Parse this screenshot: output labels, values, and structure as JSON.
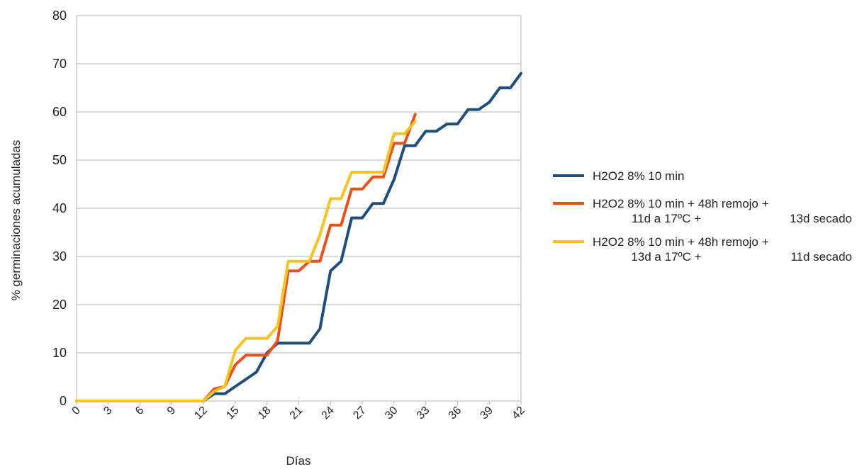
{
  "chart_data": {
    "type": "line",
    "title": "",
    "xlabel": "Días",
    "ylabel": "% germinaciones acumuladas",
    "xlim": [
      0,
      42
    ],
    "ylim": [
      0,
      80
    ],
    "yticks": [
      0,
      10,
      20,
      30,
      40,
      50,
      60,
      70,
      80
    ],
    "xticks": [
      0,
      3,
      6,
      9,
      12,
      15,
      18,
      21,
      24,
      27,
      30,
      33,
      36,
      39,
      42
    ],
    "grid": "horizontal",
    "legend_position": "right",
    "series": [
      {
        "name_lines": [
          "H2O2 8% 10 min"
        ],
        "color": "#1e4e79",
        "x": [
          0,
          12,
          13,
          14,
          15,
          16,
          17,
          18,
          19,
          20,
          21,
          22,
          23,
          24,
          25,
          26,
          27,
          28,
          29,
          30,
          31,
          32,
          33,
          34,
          35,
          36,
          37,
          38,
          39,
          40,
          41,
          42
        ],
        "y": [
          0,
          0,
          1.5,
          1.5,
          3,
          4.5,
          6,
          10,
          12,
          12,
          12,
          12,
          15,
          27,
          29,
          38,
          38,
          41,
          41,
          46,
          53,
          53,
          56,
          56,
          57.5,
          57.5,
          60.5,
          60.5,
          62,
          65,
          65,
          68
        ]
      },
      {
        "name_lines": [
          "H2O2 8% 10 min + 48h remojo +",
          "11d a 17ºC +",
          "13d secado"
        ],
        "color": "#e8521c",
        "x": [
          0,
          12,
          13,
          14,
          15,
          16,
          17,
          18,
          19,
          20,
          21,
          22,
          23,
          24,
          25,
          26,
          27,
          28,
          29,
          30,
          31,
          32
        ],
        "y": [
          0,
          0,
          2.5,
          3,
          7.5,
          9.5,
          9.5,
          9.5,
          12.5,
          27,
          27,
          29,
          29,
          36.5,
          36.5,
          44,
          44,
          46.5,
          46.5,
          53.5,
          53.5,
          59.5
        ]
      },
      {
        "name_lines": [
          "H2O2 8% 10 min + 48h remojo +",
          "13d a 17ºC +",
          "11d secado"
        ],
        "color": "#f6c324",
        "x": [
          0,
          12,
          13,
          14,
          15,
          16,
          17,
          18,
          19,
          20,
          21,
          22,
          23,
          24,
          25,
          26,
          27,
          28,
          29,
          30,
          31,
          32
        ],
        "y": [
          0,
          0,
          2,
          3,
          10.5,
          13,
          13,
          13,
          15.5,
          29,
          29,
          29,
          34.5,
          42,
          42,
          47.5,
          47.5,
          47.5,
          47.5,
          55.5,
          55.5,
          58
        ]
      }
    ]
  }
}
